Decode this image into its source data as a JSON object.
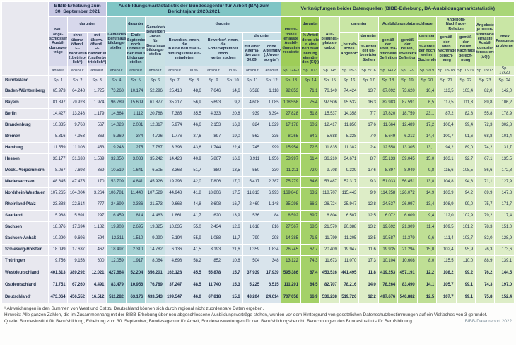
{
  "table": {
    "group1_title": "BIBB-Erhebung zum\n30. September 2021",
    "group2_title": "Ausbildungsmarktstatistik der Bundesagentur für Arbeit (BA) zum Berichtsjahr 2020/2021",
    "group3_title": "Verknüpfungen beider Datenquellen (BIBB-Erhebung, BA-Ausbildungsmarktstatistik)",
    "darunter": "darunter",
    "bundesland_label": "Bundesland",
    "col1": "Neu abge-\nschlossene\nAusbil-\ndungsver-\nträge",
    "col2": "ohne\nüberw.\nöffentl. Fi-\nnanzierung\n(„betrieb-\nlich“)",
    "col3": "mit überw.\nöffentl. Fi-\nnanzierung\n(„außerbe-\ntrieblich“)",
    "col4": "Gemeldete\nBerufsaus-\nbildungs-\nstellen",
    "col5": "Ende\nSeptember\nnoch\nunbesetzte\nBerufsaus-\nbildungs-\nstellen",
    "col6": "Gemeldete\nBewerber/\n-innen für\nBerufsaus-\nbildungs-\nstellen",
    "col7_8": "Bewerber/-innen, die\nin eine Berufsaus-\nbildungsstelle ein-\nmündeten",
    "col9_10": "Bewerber/-innen, die\nEnde September noch\nweiter suchen",
    "col11": "mit einer\nAlterna-\ntive zum\n30.09.",
    "col12": "ohne\nAlternative\n(„Unver-\nsorgte“)",
    "col13": "Institu-\ntionell\nerfasste\nAusbil-\ndungsinte-\nressierte",
    "col14": "%-Anteil\nderer, die\nin eine\nBerufsaus-\nbildung\neinmün-\nden (EQI)",
    "col15": "Aus-\nbildungs-\nplatzan-\ngebot",
    "col16": "„betrieb-\nliches\nAngebot“",
    "col17": "%-Anteil\nder un-\nbesetzten\nStellen",
    "nachfrage_title": "Ausbildungsplatznachfrage",
    "col18": "gemäß der\nalten, tra-\nditionellen\nDefinition",
    "col19": "gemäß der\nneuen,\nerweiterten\nDefinition",
    "col20": "%-Anteil\nder noch\nweiter\nSuchenden",
    "anr_title": "Angebots-Nachfrage-\nRelation",
    "col21": "gemäß der\nalten\nNachfrage-\nberech-\nnung",
    "col22": "gemäß der\nneuen\nNachfrage-\nberech-\nnung",
    "col23": "Angebote\nje 100 in-\nstitutionell\nerfasste\nAusbil-\ndungsin-\nteressierte\n(AQI)",
    "col24": "Index\nPassungs-\nprobleme",
    "units": [
      "absolut",
      "absolut",
      "absolut",
      "absolut",
      "absolut",
      "absolut",
      "absolut",
      "in %",
      "absolut",
      "in %",
      "absolut",
      "absolut",
      "Sp. 1+6-7",
      "Sp. 1/13",
      "Sp. 1+5",
      "Sp. 15-3",
      "Sp. 5/16",
      "Sp. 1+12",
      "Sp. 1+9",
      "Sp. 9/19",
      "Sp. 15/18",
      "Sp. 15/19",
      "Sp. 15/13",
      "Sp. 17x20"
    ],
    "sp_labels": [
      "Sp. 1",
      "Sp. 2",
      "Sp. 3",
      "Sp. 4",
      "Sp. 5",
      "Sp. 6",
      "Sp. 7",
      "Sp. 8",
      "Sp. 9",
      "Sp. 10",
      "Sp. 11",
      "Sp. 12",
      "Sp. 13",
      "Sp. 14",
      "Sp. 15",
      "Sp. 16",
      "Sp. 17",
      "Sp. 18",
      "Sp. 19",
      "Sp. 20",
      "Sp. 21",
      "Sp. 22",
      "Sp. 23",
      "Sp. 24"
    ],
    "rows": [
      {
        "label": "Baden-Württemberg",
        "values": [
          "65.973",
          "64.248",
          "1.725",
          "73.268",
          "10.174",
          "52.296",
          "25.418",
          "48,6",
          "7.646",
          "14,6",
          "6.528",
          "1.118",
          "92.853",
          "71,1",
          "76.149",
          "74.424",
          "13,7",
          "67.092",
          "73.620",
          "10,4",
          "113,5",
          "103,4",
          "82,0",
          "142,0"
        ]
      },
      {
        "label": "Bayern",
        "values": [
          "81.897",
          "79.923",
          "1.974",
          "96.789",
          "15.609",
          "61.877",
          "35.217",
          "56,9",
          "5.693",
          "9,2",
          "4.608",
          "1.085",
          "108.558",
          "75,4",
          "97.506",
          "95.532",
          "16,3",
          "82.983",
          "87.591",
          "6,5",
          "117,5",
          "111,3",
          "89,8",
          "106,2"
        ]
      },
      {
        "label": "Berlin",
        "values": [
          "14.427",
          "13.248",
          "1.179",
          "14.664",
          "1.112",
          "20.788",
          "7.385",
          "35,5",
          "4.333",
          "20,8",
          "939",
          "3.394",
          "27.828",
          "51,8",
          "15.537",
          "14.358",
          "7,7",
          "17.820",
          "18.759",
          "23,1",
          "87,2",
          "82,8",
          "55,8",
          "178,9"
        ]
      },
      {
        "label": "Brandenburg",
        "values": [
          "10.335",
          "9.768",
          "567",
          "14.023",
          "2.081",
          "12.817",
          "5.974",
          "46,6",
          "2.153",
          "16,8",
          "824",
          "1.329",
          "17.178",
          "60,2",
          "12.417",
          "11.850",
          "17,6",
          "11.664",
          "12.489",
          "17,2",
          "106,4",
          "99,4",
          "72,3",
          "302,8"
        ]
      },
      {
        "label": "Bremen",
        "values": [
          "5.316",
          "4.953",
          "363",
          "5.369",
          "374",
          "4.726",
          "1.776",
          "37,6",
          "897",
          "19,0",
          "562",
          "335",
          "8.265",
          "64,3",
          "5.688",
          "5.328",
          "7,0",
          "5.649",
          "6.213",
          "14,4",
          "100,7",
          "91,6",
          "68,8",
          "101,4"
        ]
      },
      {
        "label": "Hamburg",
        "values": [
          "11.559",
          "11.106",
          "453",
          "9.243",
          "275",
          "7.787",
          "3.393",
          "43,6",
          "1.744",
          "22,4",
          "745",
          "999",
          "15.954",
          "72,5",
          "11.835",
          "11.382",
          "2,4",
          "12.558",
          "13.305",
          "13,1",
          "94,2",
          "89,0",
          "74,2",
          "31,7"
        ]
      },
      {
        "label": "Hessen",
        "values": [
          "33.177",
          "31.638",
          "1.539",
          "32.850",
          "3.033",
          "35.242",
          "14.423",
          "40,9",
          "5.867",
          "16,6",
          "3.911",
          "1.956",
          "53.997",
          "61,4",
          "36.210",
          "34.671",
          "8,7",
          "35.133",
          "39.045",
          "15,0",
          "103,1",
          "92,7",
          "67,1",
          "135,5"
        ]
      },
      {
        "label": "Meckl.-Vorpommern",
        "values": [
          "8.067",
          "7.698",
          "369",
          "10.519",
          "1.641",
          "6.505",
          "3.363",
          "51,7",
          "880",
          "13,5",
          "550",
          "330",
          "11.211",
          "72,0",
          "9.708",
          "9.339",
          "17,6",
          "8.397",
          "8.949",
          "9,8",
          "115,6",
          "108,5",
          "86,6",
          "172,8"
        ]
      },
      {
        "label": "Niedersachsen",
        "values": [
          "48.645",
          "47.475",
          "1.170",
          "53.709",
          "4.841",
          "45.926",
          "19.293",
          "42,0",
          "7.806",
          "17,0",
          "5.417",
          "2.387",
          "75.279",
          "64,6",
          "53.487",
          "52.317",
          "9,3",
          "51.033",
          "56.451",
          "13,8",
          "104,8",
          "94,8",
          "71,1",
          "127,9"
        ]
      },
      {
        "label": "Nordrhein-Westfalen",
        "values": [
          "107.265",
          "104.004",
          "3.264",
          "106.781",
          "11.440",
          "107.529",
          "44.948",
          "41,8",
          "18.806",
          "17,5",
          "11.813",
          "6.993",
          "169.848",
          "63,2",
          "118.707",
          "115.443",
          "9,9",
          "114.258",
          "126.072",
          "14,9",
          "103,9",
          "94,2",
          "69,9",
          "147,8"
        ]
      },
      {
        "label": "Rheinland-Pfalz",
        "values": [
          "23.388",
          "22.614",
          "777",
          "24.699",
          "3.336",
          "21.573",
          "9.663",
          "44,8",
          "3.608",
          "16,7",
          "2.460",
          "1.148",
          "35.298",
          "66,3",
          "26.724",
          "25.947",
          "12,8",
          "24.537",
          "26.997",
          "13,4",
          "108,9",
          "99,0",
          "75,7",
          "171,7"
        ]
      },
      {
        "label": "Saarland",
        "values": [
          "5.988",
          "5.691",
          "297",
          "6.459",
          "814",
          "4.463",
          "1.861",
          "41,7",
          "620",
          "13,9",
          "536",
          "84",
          "8.592",
          "69,7",
          "6.804",
          "6.507",
          "12,5",
          "6.072",
          "6.609",
          "9,4",
          "112,0",
          "102,9",
          "79,2",
          "117,4"
        ]
      },
      {
        "label": "Sachsen",
        "values": [
          "18.876",
          "17.694",
          "1.182",
          "19.903",
          "2.695",
          "19.325",
          "10.635",
          "55,0",
          "2.434",
          "12,6",
          "1.618",
          "816",
          "27.567",
          "68,5",
          "21.570",
          "20.388",
          "13,2",
          "19.692",
          "21.309",
          "11,4",
          "109,5",
          "101,2",
          "78,3",
          "151,0"
        ]
      },
      {
        "label": "Sachsen-Anhalt",
        "values": [
          "10.290",
          "9.696",
          "594",
          "12.311",
          "1.510",
          "9.290",
          "5.194",
          "55,9",
          "1.088",
          "11,7",
          "790",
          "298",
          "14.385",
          "71,5",
          "11.799",
          "11.205",
          "13,5",
          "10.587",
          "11.379",
          "9,6",
          "111,4",
          "103,7",
          "82,0",
          "128,9"
        ]
      },
      {
        "label": "Schleswig-Holstein",
        "values": [
          "18.099",
          "17.637",
          "462",
          "18.497",
          "2.310",
          "14.782",
          "6.136",
          "41,5",
          "3.193",
          "21,6",
          "1.359",
          "1.834",
          "26.745",
          "67,7",
          "20.409",
          "19.947",
          "11,6",
          "19.935",
          "21.294",
          "15,0",
          "102,4",
          "95,9",
          "76,3",
          "173,6"
        ]
      },
      {
        "label": "Thüringen",
        "values": [
          "9.756",
          "9.153",
          "600",
          "12.059",
          "1.917",
          "8.064",
          "4.698",
          "58,2",
          "852",
          "10,6",
          "504",
          "348",
          "13.122",
          "74,3",
          "11.673",
          "11.070",
          "17,3",
          "10.104",
          "10.608",
          "8,0",
          "115,5",
          "110,0",
          "88,9",
          "139,1"
        ]
      }
    ],
    "totals": [
      {
        "label": "Westdeutschland",
        "values": [
          "401.313",
          "389.292",
          "12.021",
          "427.664",
          "52.204",
          "356.201",
          "162.128",
          "45,5",
          "55.878",
          "15,7",
          "37.939",
          "17.939",
          "595.386",
          "67,4",
          "453.516",
          "441.495",
          "11,8",
          "419.253",
          "457.191",
          "12,2",
          "108,2",
          "99,2",
          "76,2",
          "144,5"
        ]
      },
      {
        "label": "Ostdeutschland",
        "values": [
          "71.751",
          "67.260",
          "4.491",
          "83.479",
          "10.956",
          "76.789",
          "37.247",
          "48,5",
          "11.740",
          "15,3",
          "5.225",
          "6.515",
          "111.291",
          "64,5",
          "82.707",
          "78.216",
          "14,0",
          "78.264",
          "83.490",
          "14,1",
          "105,7",
          "99,1",
          "74,3",
          "197,0"
        ]
      },
      {
        "label": "Deutschland¹",
        "values": [
          "473.064",
          "456.552",
          "16.512",
          "511.282",
          "63.176",
          "433.543",
          "199.547",
          "46,0",
          "67.818",
          "15,6",
          "43.204",
          "24.614",
          "707.058",
          "66,9",
          "536.238",
          "519.726",
          "12,2",
          "497.676",
          "540.882",
          "12,5",
          "107,7",
          "99,1",
          "75,8",
          "152,4"
        ]
      }
    ]
  },
  "footnotes": {
    "note1": "¹ Abweichungen in den Summen von West und Ost zu Deutschland können sich durch regional nicht zuordenbare Daten ergeben.",
    "hint": "Hinweis: Alle ganzen Zahlen, die im Zusammenhang mit der BIBB-Erhebung über neu abgeschlossene Ausbildungsverträge stehen, wurden vor dem Hintergrund von gesetzlichen Datenschutzbestimmungen auf ein Vielfaches von 3 gerundet.",
    "source": "Quelle: Bundesinstitut für Berufsbildung, Erhebung zum 30. September; Bundesagentur für Arbeit, Sonderauswertungen für den Berufsbildungsbericht; Berechnungen des Bundesinstituts für Berufsbildung",
    "brand": "BIBB-Datenreport 2022"
  },
  "colors": {
    "bibb_header": "#c6c7e3",
    "ba_header": "#7fc5c5",
    "vk_header": "#a9d677",
    "vk_dark_cell": "#a4d168",
    "ba_dark_cell": "#a6d2d4"
  }
}
